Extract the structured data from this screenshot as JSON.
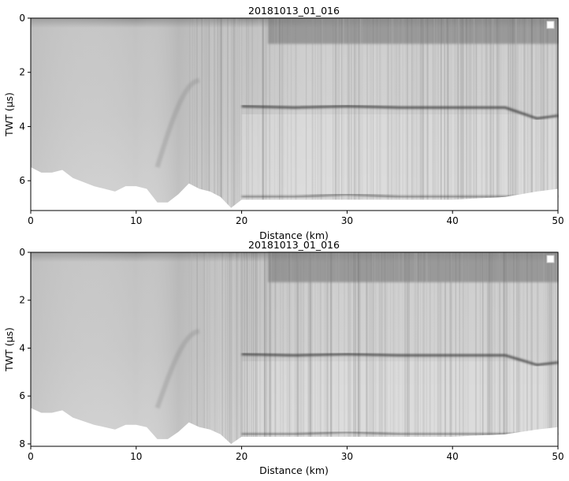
{
  "chart_data": [
    {
      "type": "heatmap",
      "title": "20181013_01_016",
      "xlabel": "Distance (km)",
      "ylabel": "TWT (µs)",
      "xlim": [
        0,
        50
      ],
      "ylim": [
        7.1,
        0
      ],
      "x_ticks": [
        0,
        10,
        20,
        30,
        40,
        50
      ],
      "y_ticks": [
        0,
        2,
        4,
        6
      ],
      "colormap": "gray",
      "legend": "top-right (empty)",
      "reflectors": [
        {
          "name": "surface",
          "x": [
            22.5,
            30,
            40,
            50
          ],
          "y": [
            0.7,
            0.7,
            0.7,
            0.7
          ]
        },
        {
          "name": "internal",
          "x": [
            20,
            25,
            30,
            35,
            40,
            45,
            48,
            50
          ],
          "y": [
            3.25,
            3.3,
            3.25,
            3.3,
            3.3,
            3.3,
            3.7,
            3.6
          ]
        },
        {
          "name": "bed",
          "x": [
            20,
            25,
            30,
            35,
            40,
            45,
            50
          ],
          "y": [
            6.6,
            6.6,
            6.5,
            6.6,
            6.6,
            6.6,
            6.6
          ]
        }
      ],
      "data_boundary": {
        "x": [
          0,
          1,
          2,
          3,
          4,
          6,
          8,
          9,
          10,
          11,
          12,
          13,
          14,
          15,
          16,
          17,
          18,
          19,
          20,
          22,
          25,
          30,
          35,
          40,
          45,
          48,
          50
        ],
        "y": [
          5.5,
          5.7,
          5.7,
          5.6,
          5.9,
          6.2,
          6.4,
          6.2,
          6.2,
          6.3,
          6.8,
          6.8,
          6.5,
          6.1,
          6.3,
          6.4,
          6.6,
          7.0,
          6.7,
          6.7,
          6.7,
          6.7,
          6.7,
          6.7,
          6.6,
          6.4,
          6.3
        ]
      }
    },
    {
      "type": "heatmap",
      "title": "20181013_01_016",
      "xlabel": "Distance (km)",
      "ylabel": "TWT (µs)",
      "xlim": [
        0,
        50
      ],
      "ylim": [
        8.1,
        0
      ],
      "x_ticks": [
        0,
        10,
        20,
        30,
        40,
        50
      ],
      "y_ticks": [
        0,
        2,
        4,
        6,
        8
      ],
      "colormap": "gray",
      "legend": "top-right (empty)",
      "reflectors": [
        {
          "name": "surface",
          "x": [
            0,
            10,
            20,
            30,
            40,
            50
          ],
          "y": [
            1.0,
            1.0,
            1.0,
            1.0,
            1.0,
            1.0
          ]
        },
        {
          "name": "internal",
          "x": [
            20,
            25,
            30,
            35,
            40,
            45,
            48,
            50
          ],
          "y": [
            4.25,
            4.3,
            4.25,
            4.3,
            4.3,
            4.3,
            4.7,
            4.6
          ]
        },
        {
          "name": "bed",
          "x": [
            20,
            25,
            30,
            35,
            40,
            45,
            50
          ],
          "y": [
            7.6,
            7.6,
            7.5,
            7.6,
            7.6,
            7.6,
            7.6
          ]
        }
      ],
      "data_boundary": {
        "x": [
          0,
          1,
          2,
          3,
          4,
          6,
          8,
          9,
          10,
          11,
          12,
          13,
          14,
          15,
          16,
          17,
          18,
          19,
          20,
          22,
          25,
          30,
          35,
          40,
          45,
          48,
          50
        ],
        "y": [
          6.5,
          6.7,
          6.7,
          6.6,
          6.9,
          7.2,
          7.4,
          7.2,
          7.2,
          7.3,
          7.8,
          7.8,
          7.5,
          7.1,
          7.3,
          7.4,
          7.6,
          8.0,
          7.7,
          7.7,
          7.7,
          7.7,
          7.7,
          7.7,
          7.6,
          7.4,
          7.3
        ]
      }
    }
  ]
}
